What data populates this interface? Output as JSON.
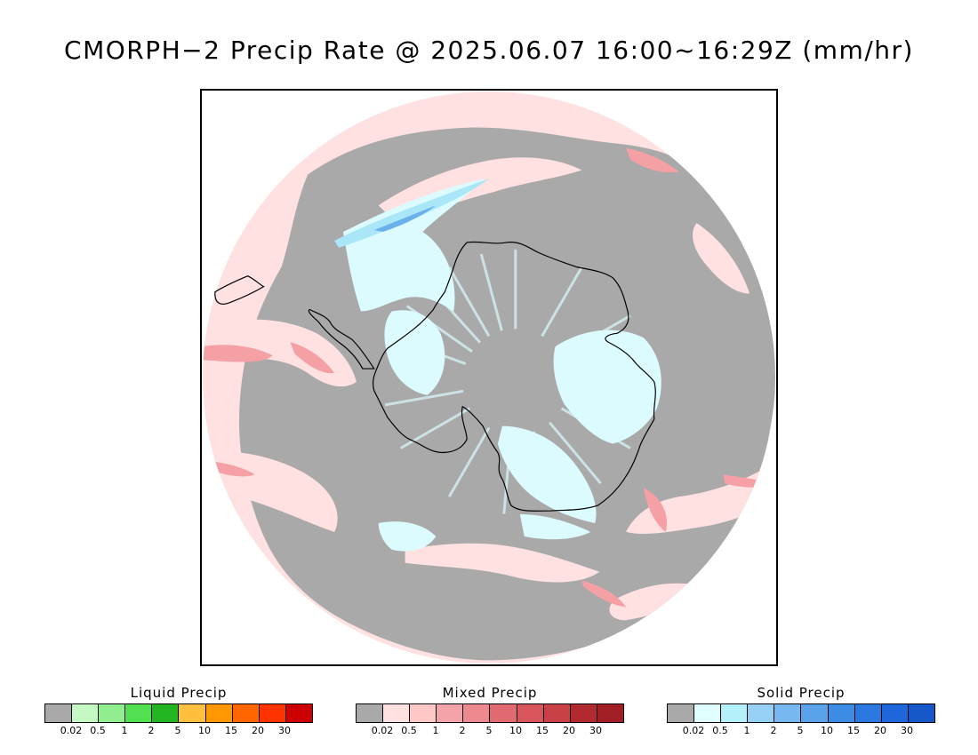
{
  "title": "CMORPH−2 Precip Rate @ 2025.06.07 16:00~16:29Z (mm/hr)",
  "map": {
    "projection": "south-polar-stereographic",
    "continent": "Antarctica",
    "colors": {
      "no_precip": "#a9a9a9",
      "mixed_light": "#ffe1e1",
      "mixed_moderate": "#f5a0a5",
      "mixed_heavy": "#e26a72",
      "solid_light": "#dcfbff",
      "solid_moderate": "#a9e6f7",
      "solid_heavy": "#6ab0ea",
      "liquid_light": "#c4f9c4",
      "coastline": "#000000"
    }
  },
  "legends": [
    {
      "title": "Liquid Precip",
      "colors": [
        "#a9a9a9",
        "#c4f9c4",
        "#90ee90",
        "#50e050",
        "#22b522",
        "#ffc040",
        "#ff9800",
        "#ff6600",
        "#ff3300",
        "#cc0000"
      ],
      "ticks": [
        "0.02",
        "0.5",
        "1",
        "2",
        "5",
        "10",
        "15",
        "20",
        "30"
      ]
    },
    {
      "title": "Mixed Precip",
      "colors": [
        "#a9a9a9",
        "#ffe1e1",
        "#ffc8c8",
        "#f4a3a8",
        "#ec8a8f",
        "#e06a70",
        "#d9555c",
        "#c94047",
        "#b02a30",
        "#a01e24"
      ],
      "ticks": [
        "0.02",
        "0.5",
        "1",
        "2",
        "5",
        "10",
        "15",
        "20",
        "30"
      ]
    },
    {
      "title": "Solid Precip",
      "colors": [
        "#a9a9a9",
        "#e0feff",
        "#b4f0fa",
        "#96d0f5",
        "#78b8f0",
        "#5aa2ea",
        "#3c8ce6",
        "#2a78e0",
        "#1e66da",
        "#1557c8"
      ],
      "ticks": [
        "0.02",
        "0.5",
        "1",
        "2",
        "5",
        "10",
        "15",
        "20",
        "30"
      ]
    }
  ]
}
